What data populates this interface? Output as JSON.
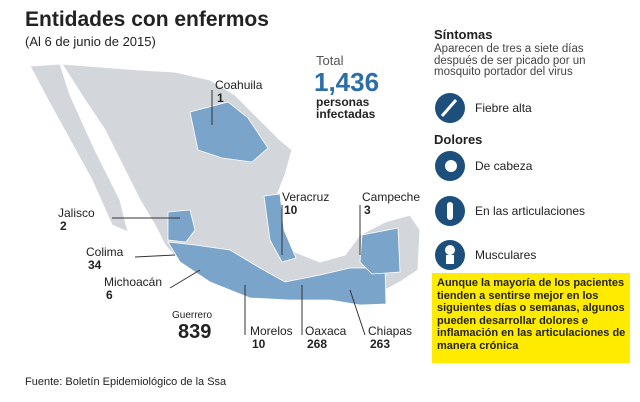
{
  "header": {
    "title": "Entidades con enfermos",
    "subtitle": "(Al 6 de junio de 2015)"
  },
  "total": {
    "label": "Total",
    "value": "1,436",
    "unit": "personas infectadas"
  },
  "states": [
    {
      "name": "Coahuila",
      "cases": 1
    },
    {
      "name": "Jalisco",
      "cases": 2
    },
    {
      "name": "Colima",
      "cases": 34
    },
    {
      "name": "Michoacán",
      "cases": 6
    },
    {
      "name": "Guerrero",
      "cases": 839
    },
    {
      "name": "Morelos",
      "cases": 10
    },
    {
      "name": "Oaxaca",
      "cases": 268
    },
    {
      "name": "Chiapas",
      "cases": 263
    },
    {
      "name": "Veracruz",
      "cases": 10
    },
    {
      "name": "Campeche",
      "cases": 3
    }
  ],
  "sidebar": {
    "title": "Síntomas",
    "description": "Aparecen de tres a siete días después de ser picado por un mosquito portador del virus",
    "fever": "Fiebre alta",
    "pains_title": "Dolores",
    "pains": [
      "De cabeza",
      "En las articulaciones",
      "Musculares"
    ]
  },
  "note": "Aunque la mayoría de los pacientes tienden a sentirse mejor en los siguientes días o semanas, algunos pueden desarrollar dolores e inflamación en las articulaciones de manera crónica",
  "source": "Fuente: Boletín Epidemiológico de la Ssa"
}
